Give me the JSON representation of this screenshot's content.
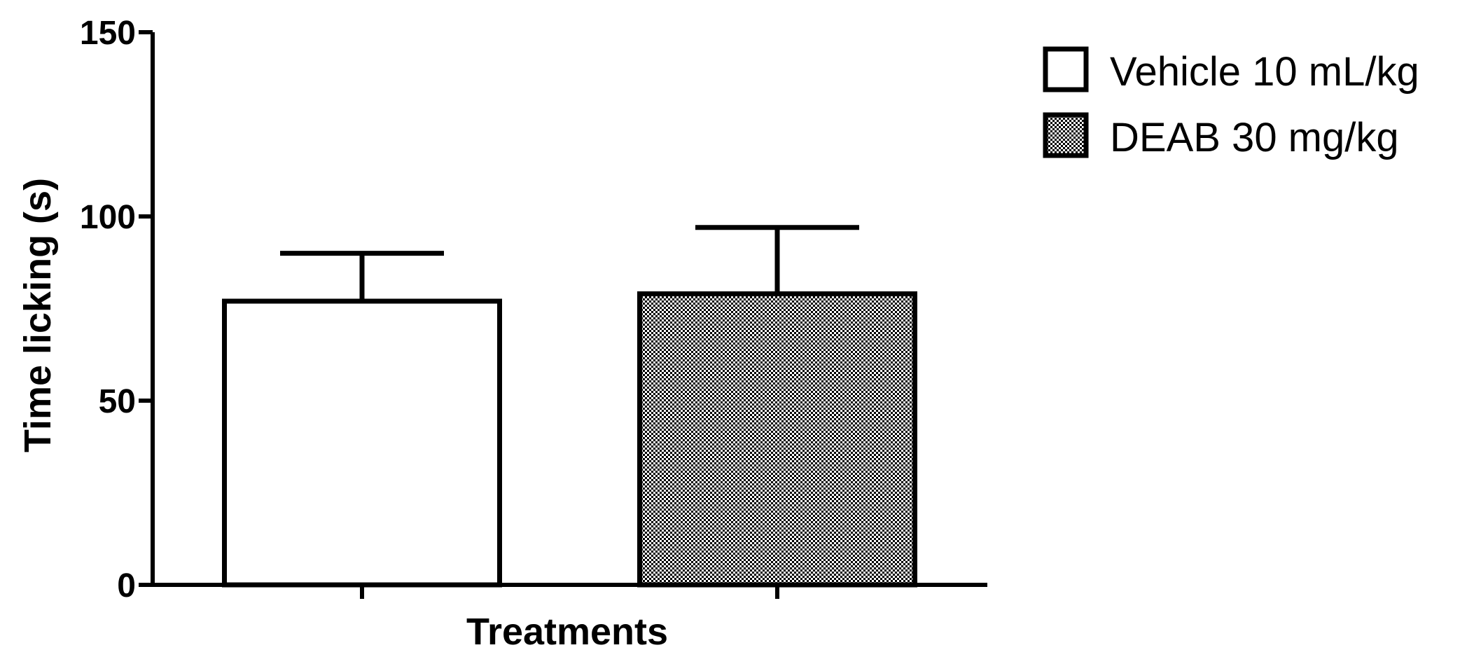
{
  "chart_data": {
    "type": "bar",
    "xlabel": "Treatments",
    "ylabel": "Time licking (s)",
    "ylim": [
      0,
      150
    ],
    "yticks": [
      "0",
      "50",
      "100",
      "150"
    ],
    "grid": false,
    "legend_position": "top-right",
    "series": [
      {
        "name": "Vehicle 10 mL/kg",
        "value": 77,
        "error": 13,
        "pattern": "none"
      },
      {
        "name": "DEAB 30 mg/kg",
        "value": 79,
        "error": 18,
        "pattern": "checkered"
      }
    ]
  },
  "colors": {
    "axis": "#000000",
    "bar_fill": "#ffffff",
    "pattern_dark": "#000000",
    "pattern_light": "#ffffff"
  }
}
